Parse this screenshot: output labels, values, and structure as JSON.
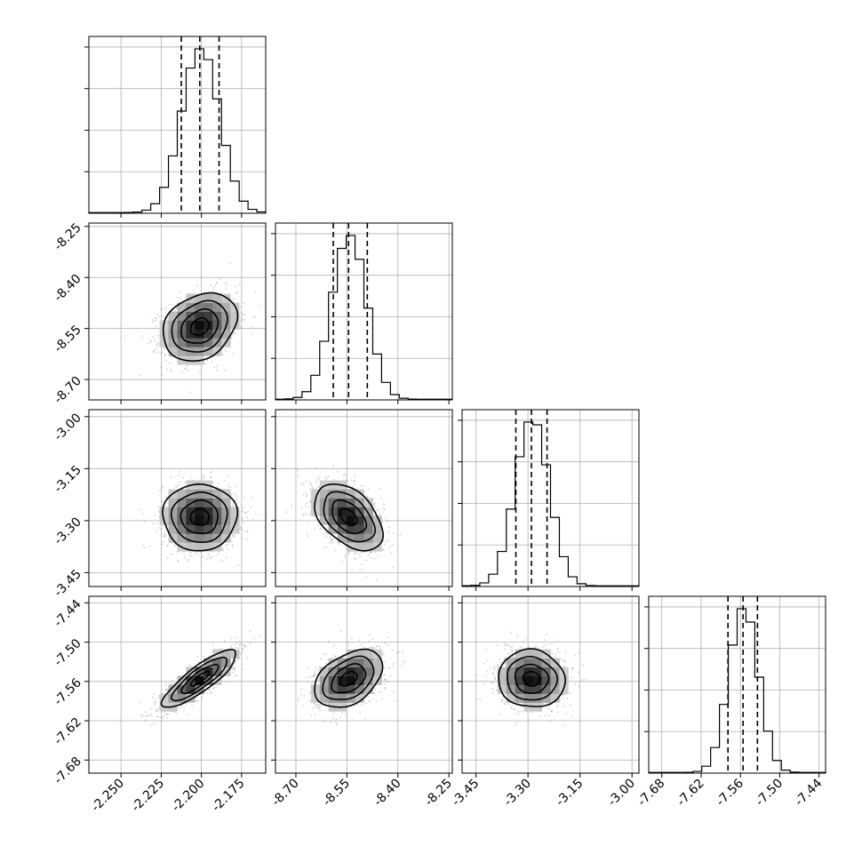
{
  "chart_data": {
    "type": "corner",
    "grid": true,
    "colors": {
      "line": "#000000",
      "grid": "#b0b0b0",
      "scatter": "#9a9a9a"
    },
    "variables": [
      {
        "ticks": [
          "-2.250",
          "-2.225",
          "-2.200",
          "-2.175"
        ],
        "tick_values": [
          -2.25,
          -2.225,
          -2.2,
          -2.175
        ],
        "range": [
          -2.27,
          -2.16
        ],
        "median": -2.201,
        "quantiles": [
          -2.2125,
          -2.201,
          -2.189
        ],
        "sigma": 0.0115
      },
      {
        "ticks": [
          "-8.70",
          "-8.55",
          "-8.40",
          "-8.25"
        ],
        "tick_values": [
          -8.7,
          -8.55,
          -8.4,
          -8.25
        ],
        "range": [
          -8.76,
          -8.24
        ],
        "median": -8.545,
        "quantiles": [
          -8.59,
          -8.545,
          -8.49
        ],
        "sigma": 0.05
      },
      {
        "ticks": [
          "-3.45",
          "-3.30",
          "-3.15",
          "-3.00"
        ],
        "tick_values": [
          -3.45,
          -3.3,
          -3.15,
          -3.0
        ],
        "range": [
          -3.49,
          -2.98
        ],
        "median": -3.29,
        "quantiles": [
          -3.335,
          -3.29,
          -3.245
        ],
        "sigma": 0.048
      },
      {
        "ticks": [
          "-7.68",
          "-7.62",
          "-7.56",
          "-7.50",
          "-7.44"
        ],
        "tick_values": [
          -7.68,
          -7.62,
          -7.56,
          -7.5,
          -7.44
        ],
        "range": [
          -7.7,
          -7.43
        ],
        "median": -7.556,
        "quantiles": [
          -7.579,
          -7.556,
          -7.534
        ],
        "sigma": 0.022
      }
    ],
    "correlations": [
      {
        "i": 1,
        "j": 0,
        "rho": 0.25
      },
      {
        "i": 2,
        "j": 0,
        "rho": 0.0
      },
      {
        "i": 2,
        "j": 1,
        "rho": -0.45
      },
      {
        "i": 3,
        "j": 0,
        "rho": 0.85
      },
      {
        "i": 3,
        "j": 1,
        "rho": 0.4
      },
      {
        "i": 3,
        "j": 2,
        "rho": -0.05
      }
    ],
    "contour_levels_sigma": [
      0.5,
      1.0,
      1.5,
      2.0
    ]
  }
}
